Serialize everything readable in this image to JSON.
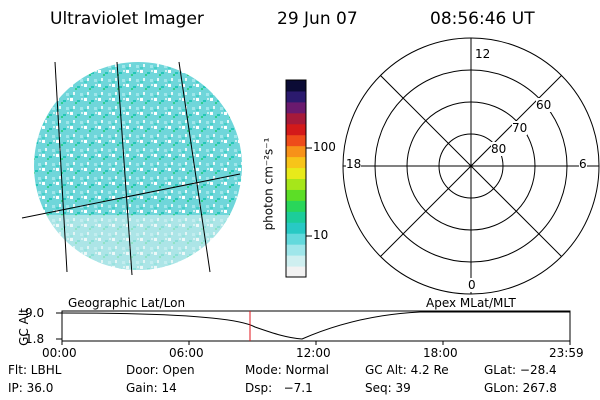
{
  "header": {
    "title": "Ultraviolet Imager",
    "date": "29 Jun 07",
    "time": "08:56:46 UT"
  },
  "colorbar": {
    "unit_label": "photon cm⁻²s⁻¹",
    "ticks": [
      "100",
      "10"
    ],
    "colors": [
      "#f2f2f2",
      "#cfeff0",
      "#9fe6ea",
      "#63d9dc",
      "#28c9c4",
      "#1ccd9a",
      "#29d65a",
      "#5cde26",
      "#a6e61a",
      "#e8ea1a",
      "#f7c419",
      "#f79219",
      "#ee4c1a",
      "#d31a1a",
      "#a61a3a",
      "#6a1a6e",
      "#2b1a6e",
      "#0b0b35"
    ]
  },
  "polar_plot": {
    "mlt_labels": {
      "top": "12",
      "bottom": "0",
      "left": "18",
      "right": "6"
    },
    "lat_labels": [
      "60",
      "70",
      "80"
    ]
  },
  "timeline": {
    "ylabel": "GC Alt",
    "y_ticks": [
      "9.0",
      "1.8"
    ],
    "left_label": "Geographic Lat/Lon",
    "right_label": "Apex MLat/MLT",
    "x_ticks": [
      "00:00",
      "06:00",
      "12:00",
      "18:00",
      "23:59"
    ],
    "marker_color": "#e0141e"
  },
  "info_rows": [
    [
      "Flt: LBHL",
      "Door: Open",
      "Mode: Normal",
      "GC Alt: 4.2 Re",
      "GLat: −28.4"
    ],
    [
      "IP: 36.0",
      "Gain: 14",
      "Dsp:   −7.1",
      "Seq: 39",
      "GLon: 267.8"
    ]
  ]
}
